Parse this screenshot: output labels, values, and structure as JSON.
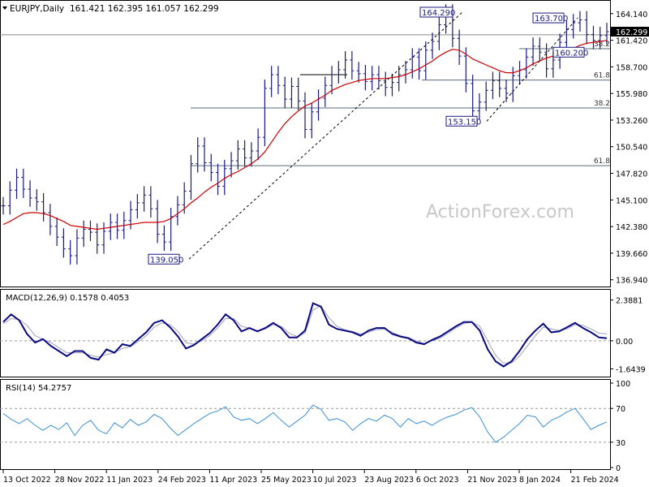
{
  "header": {
    "symbol": "EURJPY,Daily",
    "ohlc": "161.421 162.395 161.057 162.299"
  },
  "watermark": "ActionForex.com",
  "colors": {
    "price": "#1a1a80",
    "ema": "#cc0000",
    "macd": "#0a0a80",
    "signal": "#a0a0c0",
    "rsi": "#3c8fd8",
    "level": "#5a6a7a",
    "trend": "#000000"
  },
  "x_axis": {
    "labels": [
      "13 Oct 2022",
      "28 Nov 2022",
      "11 Jan 2023",
      "24 Feb 2023",
      "11 Apr 2023",
      "25 May 2023",
      "10 Jul 2023",
      "23 Aug 2023",
      "6 Oct 2023",
      "21 Nov 2023",
      "8 Jan 2024",
      "21 Feb 2024"
    ]
  },
  "chart_data": [
    {
      "type": "line",
      "title": "EURJPY,Daily",
      "ylim": [
        136.5,
        165.2
      ],
      "y_ticks": [
        "164.140",
        "161.420",
        "158.700",
        "155.980",
        "153.260",
        "150.540",
        "147.820",
        "145.100",
        "142.380",
        "139.660",
        "136.940"
      ],
      "current_price": "162.299",
      "price_close": [
        144.5,
        146.1,
        147.4,
        146.2,
        145.3,
        144.9,
        143.8,
        142.4,
        141.3,
        140.1,
        139.4,
        141.2,
        142.1,
        141.8,
        140.5,
        141.9,
        142.8,
        142.0,
        143.0,
        144.1,
        144.8,
        145.6,
        144.2,
        141.6,
        140.8,
        143.4,
        144.6,
        146.0,
        148.8,
        150.6,
        148.9,
        147.9,
        146.5,
        148.3,
        149.1,
        150.3,
        149.4,
        150.1,
        151.5,
        156.5,
        157.9,
        156.8,
        155.4,
        156.7,
        155.2,
        152.3,
        154.1,
        155.5,
        156.8,
        157.9,
        158.4,
        159.4,
        158.3,
        158.0,
        157.2,
        157.9,
        157.3,
        156.6,
        157.1,
        157.9,
        158.4,
        159.7,
        158.3,
        160.4,
        161.3,
        163.0,
        164.2,
        161.6,
        159.8,
        157.0,
        154.2,
        155.1,
        156.3,
        157.3,
        156.5,
        156.0,
        157.8,
        158.4,
        159.7,
        160.8,
        160.2,
        158.5,
        159.4,
        161.2,
        162.5,
        163.2,
        163.5,
        162.0,
        161.4,
        161.9,
        162.3
      ],
      "ema": {
        "name": "",
        "values": [
          142.6,
          142.9,
          143.3,
          143.7,
          143.8,
          143.8,
          143.7,
          143.5,
          143.2,
          142.9,
          142.5,
          142.4,
          142.3,
          142.2,
          142.1,
          142.2,
          142.3,
          142.4,
          142.5,
          142.6,
          142.7,
          142.8,
          142.8,
          142.8,
          142.9,
          143.2,
          143.7,
          144.2,
          144.8,
          145.3,
          145.9,
          146.4,
          146.8,
          147.3,
          147.7,
          148.0,
          148.4,
          148.8,
          149.3,
          150.0,
          151.0,
          152.0,
          152.9,
          153.6,
          154.2,
          154.7,
          155.0,
          155.4,
          155.8,
          156.3,
          156.6,
          156.9,
          157.1,
          157.3,
          157.4,
          157.5,
          157.5,
          157.5,
          157.6,
          157.7,
          157.9,
          158.2,
          158.5,
          158.9,
          159.3,
          159.8,
          160.2,
          160.5,
          160.4,
          160.0,
          159.5,
          159.2,
          158.9,
          158.6,
          158.3,
          158.1,
          158.1,
          158.3,
          158.6,
          159.0,
          159.3,
          159.6,
          159.8,
          160.1,
          160.4,
          160.6,
          160.9,
          161.1,
          161.2,
          161.3,
          161.4
        ]
      },
      "fib_levels": [
        {
          "label": "38.2",
          "value": 160.55
        },
        {
          "label": "61.8",
          "value": 157.35
        },
        {
          "label": "38.2",
          "value": 154.5
        },
        {
          "label": "61.8",
          "value": 148.6
        }
      ],
      "horizontal_line": 161.98,
      "annotations": [
        {
          "label": "164.290",
          "value": 164.29
        },
        {
          "label": "163.700",
          "value": 163.7
        },
        {
          "label": "160.200",
          "value": 160.2
        },
        {
          "label": "153.150",
          "value": 153.15
        },
        {
          "label": "139.050",
          "value": 139.05
        }
      ]
    },
    {
      "type": "line",
      "title": "MACD(12,26,9) 0.1578 0.4053",
      "ylim": [
        -2.0,
        2.75
      ],
      "y_ticks": [
        "2.3881",
        "0.00",
        "-1.6439"
      ],
      "series": [
        {
          "name": "",
          "values": [
            1.1,
            1.55,
            1.2,
            0.4,
            -0.1,
            0.1,
            -0.3,
            -0.6,
            -0.9,
            -0.6,
            -0.6,
            -1.0,
            -1.1,
            -0.5,
            -0.7,
            -0.2,
            -0.3,
            0.1,
            0.5,
            1.05,
            1.2,
            0.8,
            0.25,
            -0.45,
            -0.25,
            0.1,
            0.45,
            0.95,
            1.55,
            1.2,
            0.55,
            0.75,
            0.55,
            0.75,
            1.05,
            0.75,
            0.2,
            0.2,
            0.6,
            2.2,
            2.0,
            0.95,
            0.7,
            0.6,
            0.5,
            0.3,
            0.6,
            0.75,
            0.75,
            0.4,
            0.25,
            0.15,
            -0.1,
            -0.2,
            0.05,
            0.25,
            0.55,
            0.85,
            1.1,
            1.1,
            0.6,
            -0.5,
            -1.2,
            -1.5,
            -1.2,
            -0.6,
            0.1,
            0.6,
            1.0,
            0.5,
            0.55,
            0.8,
            1.05,
            0.75,
            0.5,
            0.2,
            0.15
          ]
        },
        {
          "name": "",
          "values": [
            1.0,
            1.3,
            1.25,
            0.9,
            0.3,
            0.1,
            -0.1,
            -0.4,
            -0.7,
            -0.7,
            -0.7,
            -0.85,
            -0.95,
            -0.8,
            -0.7,
            -0.45,
            -0.35,
            -0.05,
            0.3,
            0.8,
            1.05,
            0.95,
            0.55,
            -0.1,
            -0.2,
            0.0,
            0.3,
            0.75,
            1.3,
            1.3,
            0.85,
            0.75,
            0.6,
            0.7,
            0.95,
            0.85,
            0.45,
            0.25,
            0.45,
            1.8,
            2.05,
            1.35,
            0.85,
            0.65,
            0.55,
            0.4,
            0.5,
            0.65,
            0.7,
            0.5,
            0.3,
            0.2,
            0.0,
            -0.15,
            0.0,
            0.15,
            0.45,
            0.75,
            1.0,
            1.1,
            0.85,
            0.0,
            -0.85,
            -1.3,
            -1.3,
            -0.9,
            -0.3,
            0.3,
            0.8,
            0.7,
            0.6,
            0.7,
            0.95,
            0.9,
            0.7,
            0.45,
            0.4
          ]
        }
      ]
    },
    {
      "type": "line",
      "title": "RSI(14) 54.2757",
      "ylim": [
        0,
        100
      ],
      "y_ticks": [
        "100",
        "70",
        "30",
        "0"
      ],
      "levels": [
        70,
        30
      ],
      "series": [
        {
          "name": "",
          "values": [
            64,
            57,
            52,
            58,
            50,
            44,
            50,
            45,
            53,
            38,
            50,
            56,
            44,
            40,
            53,
            47,
            57,
            50,
            54,
            63,
            58,
            47,
            38,
            45,
            52,
            58,
            64,
            67,
            72,
            60,
            56,
            58,
            52,
            58,
            65,
            56,
            48,
            55,
            62,
            74,
            69,
            56,
            58,
            54,
            44,
            52,
            58,
            55,
            62,
            58,
            48,
            58,
            52,
            55,
            50,
            56,
            60,
            63,
            68,
            71,
            60,
            42,
            30,
            36,
            44,
            52,
            62,
            60,
            48,
            56,
            60,
            66,
            70,
            58,
            45,
            50,
            54
          ]
        }
      ]
    }
  ]
}
